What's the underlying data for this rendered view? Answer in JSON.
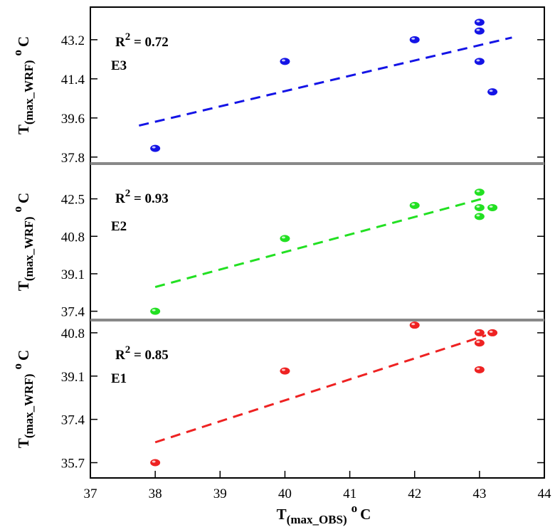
{
  "chart_data": {
    "type": "scatter",
    "x_axis": {
      "title_main": "T",
      "title_sub": "(max_OBS)",
      "title_unit": "o",
      "title_unit_tail": "C",
      "range": [
        37,
        44
      ],
      "ticks": [
        "37",
        "38",
        "39",
        "40",
        "41",
        "42",
        "43",
        "44"
      ]
    },
    "y_axis_title": {
      "main": "T",
      "sub": "(max_WRF)",
      "unit": "o",
      "unit_tail": "C"
    },
    "panels": [
      {
        "name": "E3",
        "color": "#1414e6",
        "r2_prefix": "R",
        "r2_exp": "2",
        "r2_value": " = 0.72",
        "ylim": [
          37.5,
          44.7
        ],
        "y_ticks": [
          37.8,
          39.6,
          41.4,
          43.2
        ],
        "y_tick_labels": [
          "37.8",
          "39.6",
          "41.4",
          "43.2"
        ],
        "points": [
          {
            "x": 38,
            "y": 38.2
          },
          {
            "x": 40,
            "y": 42.2
          },
          {
            "x": 42,
            "y": 43.2
          },
          {
            "x": 43,
            "y": 44.0
          },
          {
            "x": 43,
            "y": 43.6
          },
          {
            "x": 43,
            "y": 42.2
          },
          {
            "x": 43.2,
            "y": 40.8
          }
        ],
        "fit_line": {
          "x": [
            37.75,
            43.5
          ],
          "y": [
            39.25,
            43.3
          ]
        }
      },
      {
        "name": "E2",
        "color": "#22e022",
        "r2_prefix": "R",
        "r2_exp": "2",
        "r2_value": " = 0.93",
        "ylim": [
          37.0,
          44.1
        ],
        "y_ticks": [
          37.4,
          39.1,
          40.8,
          42.5
        ],
        "y_tick_labels": [
          "37.4",
          "39.1",
          "40.8",
          "42.5"
        ],
        "points": [
          {
            "x": 38,
            "y": 37.4
          },
          {
            "x": 40,
            "y": 40.7
          },
          {
            "x": 42,
            "y": 42.2
          },
          {
            "x": 43,
            "y": 42.8
          },
          {
            "x": 43,
            "y": 42.1
          },
          {
            "x": 43,
            "y": 41.7
          },
          {
            "x": 43.2,
            "y": 42.1
          }
        ],
        "fit_line": {
          "x": [
            38.0,
            43.1
          ],
          "y": [
            38.5,
            42.55
          ]
        }
      },
      {
        "name": "E1",
        "color": "#ee2222",
        "r2_prefix": "R",
        "r2_exp": "2",
        "r2_value": " = 0.85",
        "ylim": [
          35.1,
          41.3
        ],
        "y_ticks": [
          35.7,
          37.4,
          39.1,
          40.8
        ],
        "y_tick_labels": [
          "35.7",
          "37.4",
          "39.1",
          "40.8"
        ],
        "points": [
          {
            "x": 38,
            "y": 35.7
          },
          {
            "x": 40,
            "y": 39.3
          },
          {
            "x": 42,
            "y": 41.1
          },
          {
            "x": 43,
            "y": 40.8
          },
          {
            "x": 43,
            "y": 40.4
          },
          {
            "x": 43,
            "y": 39.35
          },
          {
            "x": 43.2,
            "y": 40.8
          }
        ],
        "fit_line": {
          "x": [
            38.0,
            43.1
          ],
          "y": [
            36.5,
            40.7
          ]
        }
      }
    ]
  }
}
